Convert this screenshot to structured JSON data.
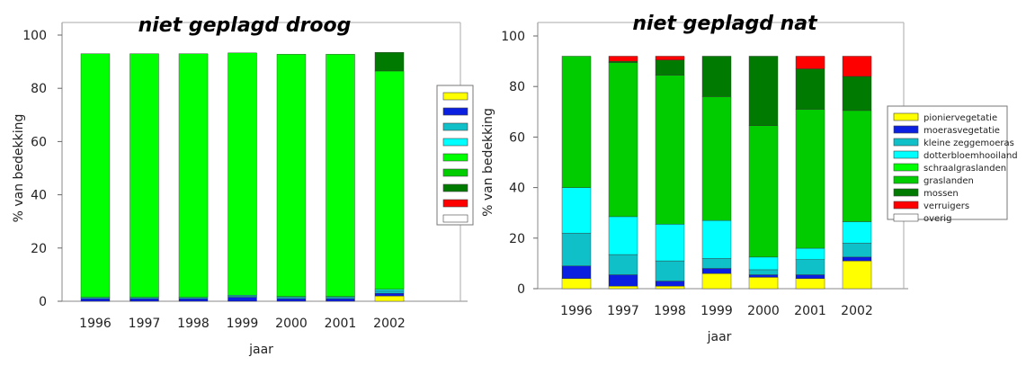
{
  "chart_data": [
    {
      "type": "bar",
      "stacked": true,
      "title": "niet geplagd droog",
      "xlabel": "jaar",
      "ylabel": "% van bedekking",
      "ylim": [
        0,
        100
      ],
      "yticks": [
        0,
        20,
        40,
        60,
        80,
        100
      ],
      "categories": [
        "1996",
        "1997",
        "1998",
        "1999",
        "2000",
        "2001",
        "2002"
      ],
      "legend": {
        "position": "right",
        "show_labels": false
      },
      "series": [
        {
          "name": "pioniervegetatie",
          "color": "#ffff00",
          "values": [
            0,
            0,
            0,
            0,
            0,
            0,
            2
          ]
        },
        {
          "name": "moerasvegetatie",
          "color": "#0a1fe0",
          "values": [
            1,
            1,
            1,
            1.5,
            1,
            1,
            1
          ]
        },
        {
          "name": "kleine zeggemoeras",
          "color": "#10c0c8",
          "values": [
            0.5,
            0.5,
            0.5,
            0.5,
            0.5,
            0.5,
            1
          ]
        },
        {
          "name": "dotterbloemhooiland",
          "color": "#00ffff",
          "values": [
            0,
            0,
            0,
            0.3,
            0.3,
            0.3,
            0.5
          ]
        },
        {
          "name": "schraalgraslanden",
          "color": "#00ff00",
          "values": [
            91.5,
            91.5,
            91.5,
            91,
            91,
            91,
            82
          ]
        },
        {
          "name": "graslanden",
          "color": "#00cc00",
          "values": [
            0,
            0,
            0,
            0,
            0,
            0,
            0
          ]
        },
        {
          "name": "mossen",
          "color": "#007a00",
          "values": [
            0,
            0,
            0,
            0,
            0,
            0,
            7
          ]
        },
        {
          "name": "verruigers",
          "color": "#ff0000",
          "values": [
            0,
            0,
            0,
            0,
            0,
            0,
            0
          ]
        },
        {
          "name": "overig",
          "color": "#ffffff",
          "values": [
            0,
            0,
            0,
            0,
            0,
            0,
            0
          ]
        }
      ]
    },
    {
      "type": "bar",
      "stacked": true,
      "title": "niet geplagd nat",
      "xlabel": "jaar",
      "ylabel": "% van bedekking",
      "ylim": [
        0,
        100
      ],
      "yticks": [
        0,
        20,
        40,
        60,
        80,
        100
      ],
      "categories": [
        "1996",
        "1997",
        "1998",
        "1999",
        "2000",
        "2001",
        "2002"
      ],
      "legend": {
        "position": "right",
        "show_labels": true
      },
      "series": [
        {
          "name": "pioniervegetatie",
          "color": "#ffff00",
          "values": [
            4,
            1,
            1,
            6,
            4.5,
            4,
            11
          ]
        },
        {
          "name": "moerasvegetatie",
          "color": "#0a1fe0",
          "values": [
            5,
            4.5,
            2,
            2,
            1,
            1.5,
            1.5
          ]
        },
        {
          "name": "kleine zeggemoeras",
          "color": "#10c0c8",
          "values": [
            13,
            8,
            8,
            4,
            2,
            6,
            5.5
          ]
        },
        {
          "name": "dotterbloemhooiland",
          "color": "#00ffff",
          "values": [
            18,
            15,
            14.5,
            15,
            5,
            4.5,
            8.5
          ]
        },
        {
          "name": "schraalgraslanden",
          "color": "#00ff00",
          "values": [
            0,
            0,
            0,
            0,
            0,
            0,
            0
          ]
        },
        {
          "name": "graslanden",
          "color": "#00cc00",
          "values": [
            52,
            61,
            59,
            49,
            52,
            55,
            44
          ]
        },
        {
          "name": "mossen",
          "color": "#007a00",
          "values": [
            0,
            0.5,
            6,
            16,
            27.5,
            16,
            13.5
          ]
        },
        {
          "name": "verruigers",
          "color": "#ff0000",
          "values": [
            0,
            2,
            1.5,
            0,
            0,
            5,
            8
          ]
        },
        {
          "name": "overig",
          "color": "#ffffff",
          "values": [
            0,
            0,
            0,
            0,
            0,
            0,
            0
          ]
        }
      ]
    }
  ]
}
